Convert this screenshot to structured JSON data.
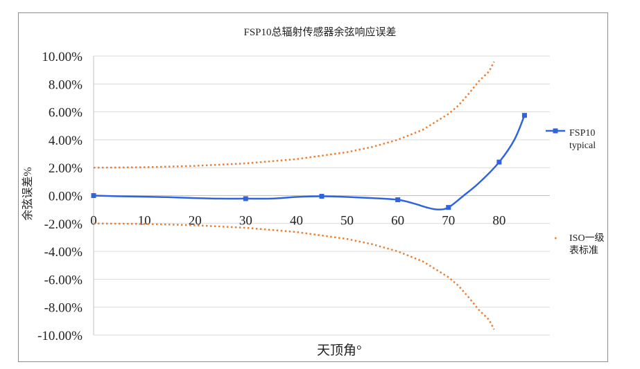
{
  "chart_data": {
    "type": "line",
    "title": "FSP10总辐射传感器余弦响应误差",
    "xlabel": "天顶角°",
    "ylabel": "余弦误差%",
    "xlim": [
      0,
      90
    ],
    "ylim": [
      -10,
      10
    ],
    "x_ticks": [
      "0",
      "10",
      "20",
      "30",
      "40",
      "50",
      "60",
      "70",
      "80"
    ],
    "y_ticks": [
      "10.00%",
      "8.00%",
      "6.00%",
      "4.00%",
      "2.00%",
      "0.00%",
      "-2.00%",
      "-4.00%",
      "-6.00%",
      "-8.00%",
      "-10.00%"
    ],
    "grid": "horizontal",
    "legend_position": "right",
    "series": [
      {
        "name": "FSP10 typical",
        "color": "#2f63e0",
        "style": "solid-with-square-markers",
        "points": [
          [
            0,
            0.0
          ],
          [
            30,
            -0.22
          ],
          [
            45,
            -0.05
          ],
          [
            60,
            -0.3
          ],
          [
            70,
            -0.85
          ],
          [
            80,
            2.4
          ],
          [
            85,
            5.75
          ]
        ],
        "curve": [
          [
            0,
            0.0
          ],
          [
            5,
            -0.05
          ],
          [
            10,
            -0.08
          ],
          [
            15,
            -0.12
          ],
          [
            20,
            -0.18
          ],
          [
            25,
            -0.22
          ],
          [
            30,
            -0.22
          ],
          [
            35,
            -0.22
          ],
          [
            40,
            -0.1
          ],
          [
            45,
            -0.05
          ],
          [
            50,
            -0.1
          ],
          [
            55,
            -0.18
          ],
          [
            60,
            -0.3
          ],
          [
            63,
            -0.55
          ],
          [
            66,
            -0.88
          ],
          [
            68,
            -1.0
          ],
          [
            70,
            -0.85
          ],
          [
            73,
            0.0
          ],
          [
            76,
            0.9
          ],
          [
            80,
            2.4
          ],
          [
            83,
            4.0
          ],
          [
            85,
            5.75
          ]
        ]
      },
      {
        "name": "ISO一级表标准",
        "color": "#ed7d31",
        "style": "dotted",
        "upper": [
          [
            0,
            2.0
          ],
          [
            10,
            2.03
          ],
          [
            20,
            2.13
          ],
          [
            30,
            2.31
          ],
          [
            40,
            2.61
          ],
          [
            50,
            3.11
          ],
          [
            55,
            3.49
          ],
          [
            60,
            4.0
          ],
          [
            65,
            4.73
          ],
          [
            70,
            5.85
          ],
          [
            72,
            6.47
          ],
          [
            74,
            7.3
          ],
          [
            76,
            8.2
          ],
          [
            78,
            8.9
          ],
          [
            79,
            9.6
          ]
        ],
        "lower": [
          [
            0,
            -2.0
          ],
          [
            10,
            -2.03
          ],
          [
            20,
            -2.13
          ],
          [
            30,
            -2.31
          ],
          [
            40,
            -2.61
          ],
          [
            50,
            -3.11
          ],
          [
            55,
            -3.49
          ],
          [
            60,
            -4.0
          ],
          [
            65,
            -4.73
          ],
          [
            70,
            -5.85
          ],
          [
            72,
            -6.47
          ],
          [
            74,
            -7.3
          ],
          [
            76,
            -8.2
          ],
          [
            78,
            -8.9
          ],
          [
            79,
            -9.6
          ]
        ]
      }
    ],
    "legend": [
      {
        "label_line1": "FSP10",
        "label_line2": "typical"
      },
      {
        "label_line1": "ISO一级",
        "label_line2": "表标准"
      }
    ]
  }
}
